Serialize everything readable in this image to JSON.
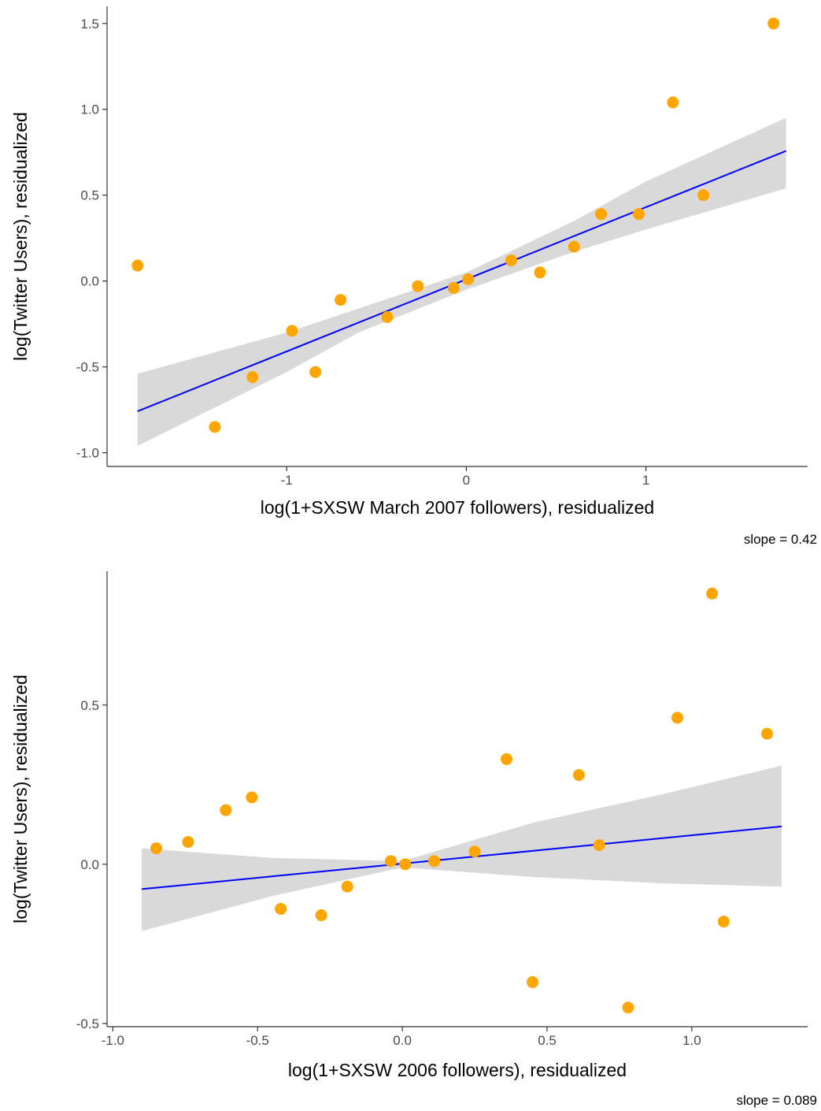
{
  "colors": {
    "points": "#FFA500",
    "fit_line": "#0000FF",
    "ribbon": "#D9D9D9",
    "axis": "#333333"
  },
  "chart_data": [
    {
      "type": "scatter",
      "title": "",
      "xlabel": "log(1+SXSW March 2007 followers), residualized",
      "ylabel": "log(Twitter Users), residualized",
      "xlim": [
        -2.0,
        1.9
      ],
      "ylim": [
        -1.08,
        1.6
      ],
      "xticks": [
        -1,
        0,
        1
      ],
      "xtick_labels": [
        "-1",
        "0",
        "1"
      ],
      "yticks": [
        -1.0,
        -0.5,
        0.0,
        0.5,
        1.0,
        1.5
      ],
      "ytick_labels": [
        "-1.0",
        "-0.5",
        "0.0",
        "0.5",
        "1.0",
        "1.5"
      ],
      "grid": false,
      "points": [
        {
          "x": -1.83,
          "y": 0.09
        },
        {
          "x": -1.4,
          "y": -0.85
        },
        {
          "x": -1.19,
          "y": -0.56
        },
        {
          "x": -0.97,
          "y": -0.29
        },
        {
          "x": -0.84,
          "y": -0.53
        },
        {
          "x": -0.7,
          "y": -0.11
        },
        {
          "x": -0.44,
          "y": -0.21
        },
        {
          "x": -0.27,
          "y": -0.03
        },
        {
          "x": -0.07,
          "y": -0.04
        },
        {
          "x": 0.01,
          "y": 0.01
        },
        {
          "x": 0.25,
          "y": 0.12
        },
        {
          "x": 0.41,
          "y": 0.05
        },
        {
          "x": 0.6,
          "y": 0.2
        },
        {
          "x": 0.75,
          "y": 0.39
        },
        {
          "x": 0.96,
          "y": 0.39
        },
        {
          "x": 1.15,
          "y": 1.04
        },
        {
          "x": 1.32,
          "y": 0.5
        },
        {
          "x": 1.71,
          "y": 1.5
        }
      ],
      "fit": {
        "slope": 0.42,
        "intercept": 0.01,
        "x_range": [
          -1.83,
          1.78
        ]
      },
      "ribbon": [
        {
          "x": -1.83,
          "lo": -0.96,
          "hi": -0.54
        },
        {
          "x": -1.0,
          "lo": -0.53,
          "hi": -0.3
        },
        {
          "x": -0.6,
          "lo": -0.3,
          "hi": -0.16
        },
        {
          "x": 0.0,
          "lo": -0.05,
          "hi": 0.05
        },
        {
          "x": 0.6,
          "lo": 0.17,
          "hi": 0.35
        },
        {
          "x": 1.0,
          "lo": 0.3,
          "hi": 0.58
        },
        {
          "x": 1.78,
          "lo": 0.54,
          "hi": 0.95
        }
      ],
      "caption": "slope = 0.42"
    },
    {
      "type": "scatter",
      "title": "",
      "xlabel": "log(1+SXSW 2006 followers), residualized",
      "ylabel": "log(Twitter Users), residualized",
      "xlim": [
        -1.02,
        1.4
      ],
      "ylim": [
        -0.51,
        0.92
      ],
      "xticks": [
        -1.0,
        -0.5,
        0.0,
        0.5,
        1.0
      ],
      "xtick_labels": [
        "-1.0",
        "-0.5",
        "0.0",
        "0.5",
        "1.0"
      ],
      "yticks": [
        -0.5,
        0.0,
        0.5
      ],
      "ytick_labels": [
        "-0.5",
        "0.0",
        "0.5"
      ],
      "grid": false,
      "points": [
        {
          "x": -0.85,
          "y": 0.05
        },
        {
          "x": -0.74,
          "y": 0.07
        },
        {
          "x": -0.61,
          "y": 0.17
        },
        {
          "x": -0.52,
          "y": 0.21
        },
        {
          "x": -0.42,
          "y": -0.14
        },
        {
          "x": -0.28,
          "y": -0.16
        },
        {
          "x": -0.19,
          "y": -0.07
        },
        {
          "x": -0.04,
          "y": 0.01
        },
        {
          "x": 0.01,
          "y": 0.0
        },
        {
          "x": 0.11,
          "y": 0.01
        },
        {
          "x": 0.25,
          "y": 0.04
        },
        {
          "x": 0.36,
          "y": 0.33
        },
        {
          "x": 0.45,
          "y": -0.37
        },
        {
          "x": 0.61,
          "y": 0.28
        },
        {
          "x": 0.68,
          "y": 0.06
        },
        {
          "x": 0.78,
          "y": -0.45
        },
        {
          "x": 0.95,
          "y": 0.46
        },
        {
          "x": 1.07,
          "y": 0.85
        },
        {
          "x": 1.11,
          "y": -0.18
        },
        {
          "x": 1.26,
          "y": 0.41
        }
      ],
      "fit": {
        "slope": 0.089,
        "intercept": 0.002,
        "x_range": [
          -0.9,
          1.31
        ]
      },
      "ribbon": [
        {
          "x": -0.9,
          "lo": -0.21,
          "hi": 0.05
        },
        {
          "x": -0.45,
          "lo": -0.1,
          "hi": 0.02
        },
        {
          "x": 0.0,
          "lo": -0.01,
          "hi": 0.01
        },
        {
          "x": 0.45,
          "lo": -0.04,
          "hi": 0.13
        },
        {
          "x": 0.9,
          "lo": -0.06,
          "hi": 0.22
        },
        {
          "x": 1.31,
          "lo": -0.07,
          "hi": 0.31
        }
      ],
      "caption": "slope = 0.089"
    }
  ]
}
